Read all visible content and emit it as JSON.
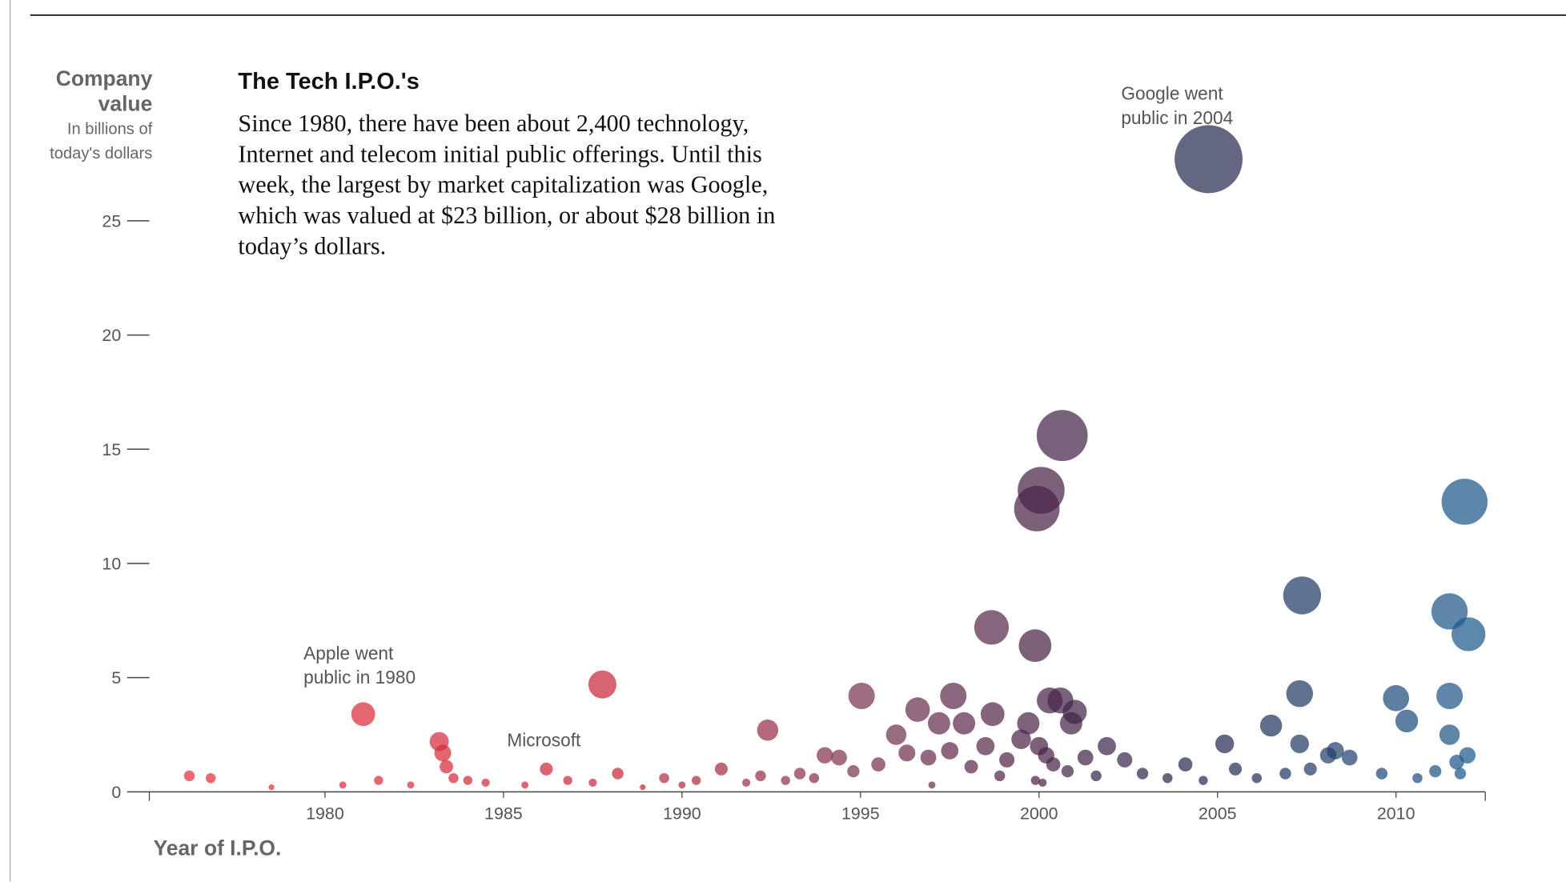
{
  "chart_data": {
    "type": "bubble",
    "title": "The Tech I.P.O.'s",
    "description_lines": [
      "Since 1980, there have been about 2,400 technology,",
      "Internet and telecom initial public offerings. Until this",
      "week, the largest by market capitalization was Google,",
      "which was valued at $23 billion, or about $28 billion in",
      "today’s dollars."
    ],
    "y_label_lines": [
      "Company",
      "value"
    ],
    "y_sublabel_lines": [
      "In billions of",
      "today's dollars"
    ],
    "x_label": "Year of I.P.O.",
    "annotations": [
      {
        "lines": [
          "Google went",
          "public in 2004"
        ],
        "x": 2002.3,
        "y": 30.3
      },
      {
        "lines": [
          "Apple went",
          "public in 1980"
        ],
        "x": 1979.4,
        "y": 5.8
      },
      {
        "lines": [
          "Microsoft"
        ],
        "x": 1985.1,
        "y": 2.0
      }
    ],
    "xlim": [
      1975.08,
      2012.5
    ],
    "ylim": [
      0,
      28
    ],
    "xticks": [
      1980,
      1985,
      1990,
      1995,
      2000,
      2005,
      2010
    ],
    "yticks": [
      0,
      5,
      10,
      15,
      20,
      25
    ],
    "color_stops": [
      {
        "x": 1976,
        "color": "#e8303c"
      },
      {
        "x": 1988,
        "color": "#c8283c"
      },
      {
        "x": 1995,
        "color": "#7a3552"
      },
      {
        "x": 2000,
        "color": "#4a2448"
      },
      {
        "x": 2005,
        "color": "#262c52"
      },
      {
        "x": 2012,
        "color": "#1d5a8c"
      }
    ],
    "x": [
      2004.75,
      2000.65,
      2000.06,
      1999.94,
      2011.92,
      2007.37,
      2011.5,
      2012.03,
      1998.67,
      1999.89,
      1981.07,
      1987.77,
      1995.03,
      1997.6,
      1996.6,
      1992.4,
      1997.2,
      1997.9,
      1998.7,
      1996.0,
      2007.3,
      2006.5,
      2005.2,
      2010.0,
      2010.3,
      2011.5,
      2011.5,
      2007.3,
      2008.1,
      2008.7,
      2000.3,
      2000.6,
      2001.0,
      2000.9,
      1999.7,
      1994.0,
      1994.4,
      1983.2,
      1983.3,
      1983.4,
      1984.0,
      1986.2,
      1976.2,
      1976.8,
      1978.5,
      1980.5,
      1981.5,
      1982.4,
      1983.6,
      1984.5,
      1985.6,
      1986.8,
      1987.5,
      1988.2,
      1988.9,
      1989.5,
      1990.0,
      1990.4,
      1991.1,
      1991.8,
      1992.2,
      1992.9,
      1993.3,
      1993.7,
      1994.8,
      1995.5,
      1996.3,
      1996.9,
      1997.5,
      1998.1,
      1998.5,
      1999.1,
      1999.5,
      2000.0,
      2000.2,
      2000.4,
      2000.8,
      2001.3,
      2001.6,
      2001.9,
      2002.4,
      2002.9,
      2003.6,
      2004.1,
      2004.6,
      2005.5,
      2006.1,
      2006.9,
      2007.6,
      2008.3,
      2009.6,
      2010.6,
      2011.1,
      2011.7,
      2012.0,
      1999.9,
      2000.1,
      1998.9,
      1997.0,
      2011.8
    ],
    "values": [
      27.7,
      15.6,
      13.2,
      12.4,
      12.7,
      8.6,
      7.9,
      6.9,
      7.2,
      6.4,
      3.4,
      4.7,
      4.2,
      4.2,
      3.6,
      2.7,
      3.0,
      3.0,
      3.4,
      2.5,
      4.3,
      2.9,
      2.1,
      4.1,
      3.1,
      4.2,
      2.5,
      2.1,
      1.6,
      1.5,
      4.0,
      4.0,
      3.5,
      3.0,
      3.0,
      1.6,
      1.5,
      2.2,
      1.7,
      1.1,
      0.5,
      1.0,
      0.7,
      0.6,
      0.2,
      0.3,
      0.5,
      0.3,
      0.6,
      0.4,
      0.3,
      0.5,
      0.4,
      0.8,
      0.2,
      0.6,
      0.3,
      0.5,
      1.0,
      0.4,
      0.7,
      0.5,
      0.8,
      0.6,
      0.9,
      1.2,
      1.7,
      1.5,
      1.8,
      1.1,
      2.0,
      1.4,
      2.3,
      2.0,
      1.6,
      1.2,
      0.9,
      1.5,
      0.7,
      2.0,
      1.4,
      0.8,
      0.6,
      1.2,
      0.5,
      1.0,
      0.6,
      0.8,
      1.0,
      1.8,
      0.8,
      0.6,
      0.9,
      1.3,
      1.6,
      0.5,
      0.4,
      0.7,
      0.3,
      0.8
    ]
  }
}
